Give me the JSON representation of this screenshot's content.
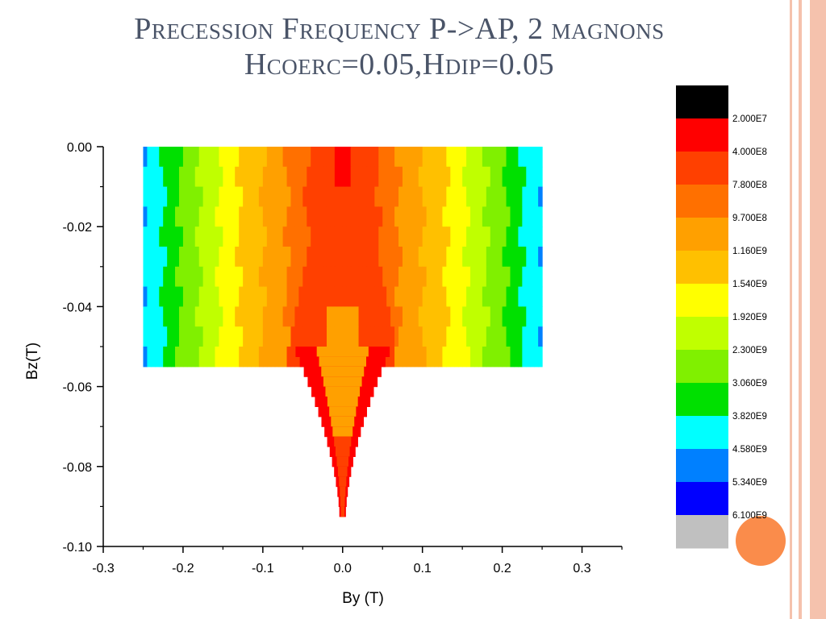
{
  "slide": {
    "title_line1": "Precession Frequency P->AP, 2 magnons",
    "title_line2": "Hcoerc=0.05,Hdip=0.05",
    "colors": {
      "title": "#4a5468",
      "stripe": "#f5c2ad",
      "accent": "#fa8c4b"
    }
  },
  "chart_data": {
    "type": "heatmap",
    "title": "",
    "xlabel": "By (T)",
    "ylabel": "Bz(T)",
    "xlim": [
      -0.3,
      0.35
    ],
    "ylim": [
      -0.1,
      0.0
    ],
    "xticks": [
      -0.3,
      -0.2,
      -0.1,
      0.0,
      0.1,
      0.2,
      0.3
    ],
    "xtick_labels": [
      "-0.3",
      "-0.2",
      "-0.1",
      "0.0",
      "0.1",
      "0.2",
      "0.3"
    ],
    "yticks": [
      0.0,
      -0.02,
      -0.04,
      -0.06,
      -0.08,
      -0.1
    ],
    "ytick_labels": [
      "0.00",
      "-0.02",
      "-0.04",
      "-0.06",
      "-0.08",
      "-0.10"
    ],
    "data_region": {
      "rect_by": [
        -0.25,
        0.25
      ],
      "rect_bz": [
        -0.05,
        0.0
      ],
      "tail_bz_min": -0.091,
      "description_units": "Tesla"
    },
    "band_edges_by_abs": [
      0.045,
      0.07,
      0.1,
      0.13,
      0.155,
      0.18,
      0.205,
      0.225,
      0.25
    ],
    "band_levels": [
      "4.000E8",
      "7.800E8",
      "9.700E8",
      "1.160E9",
      "1.540E9",
      "1.920E9",
      "2.300E9",
      "3.060E9",
      "3.820E9",
      "4.580E9",
      "5.340E9"
    ],
    "colorbar": {
      "levels": [
        {
          "label": "",
          "color": "#000000"
        },
        {
          "label": "2.000E7",
          "color": "#ff0000"
        },
        {
          "label": "4.000E8",
          "color": "#ff4000"
        },
        {
          "label": "7.800E8",
          "color": "#ff7000"
        },
        {
          "label": "9.700E8",
          "color": "#ffa000"
        },
        {
          "label": "1.160E9",
          "color": "#ffc000"
        },
        {
          "label": "1.540E9",
          "color": "#ffff00"
        },
        {
          "label": "1.920E9",
          "color": "#c0ff00"
        },
        {
          "label": "2.300E9",
          "color": "#80f000"
        },
        {
          "label": "3.060E9",
          "color": "#00e000"
        },
        {
          "label": "3.820E9",
          "color": "#00ffff"
        },
        {
          "label": "4.580E9",
          "color": "#0080ff"
        },
        {
          "label": "5.340E9",
          "color": "#0000ff"
        },
        {
          "label": "6.100E9",
          "color": "#c0c0c0"
        }
      ]
    }
  }
}
